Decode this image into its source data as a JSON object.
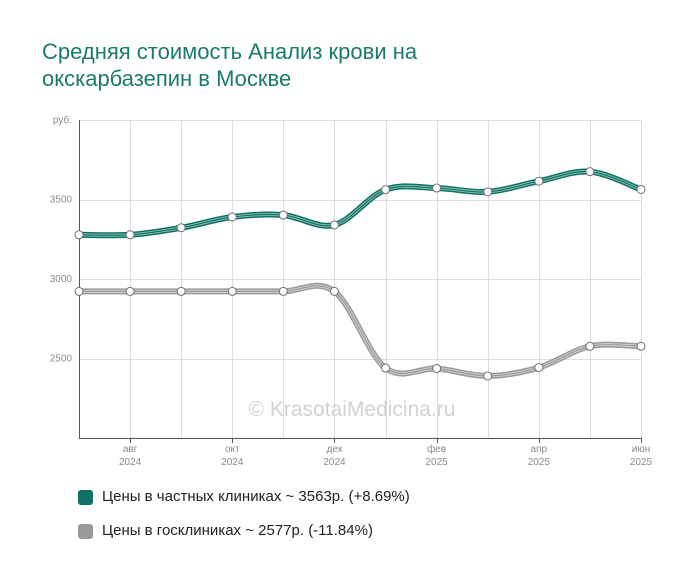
{
  "title_lines": [
    "Средняя стоимость Анализ крови на",
    "окскарбазепин в Москве"
  ],
  "watermark": "© KrasotaiMedicina.ru",
  "colors": {
    "private": "#0d7265",
    "public": "#9a9a9a"
  },
  "legend": [
    {
      "label": "Цены в частных клиниках ~ 3563р. (+8.69%)",
      "color": "#0d7265"
    },
    {
      "label": "Цены в госклиниках ~ 2577р. (-11.84%)",
      "color": "#9a9a9a"
    }
  ],
  "chart_data": {
    "type": "line",
    "y_unit": "руб.",
    "ylim": [
      2000,
      4000
    ],
    "yticks": [
      2500,
      3000,
      3500
    ],
    "x_ticks": [
      {
        "month": "авг",
        "year": "2024"
      },
      {
        "month": "окт",
        "year": "2024"
      },
      {
        "month": "дек",
        "year": "2024"
      },
      {
        "month": "фев",
        "year": "2025"
      },
      {
        "month": "апр",
        "year": "2025"
      },
      {
        "month": "июн",
        "year": "2025"
      }
    ],
    "x": [
      "2024-07",
      "2024-08",
      "2024-09",
      "2024-10",
      "2024-11",
      "2024-12",
      "2025-01",
      "2025-02",
      "2025-03",
      "2025-04",
      "2025-05",
      "2025-06"
    ],
    "series": [
      {
        "name": "Цены в частных клиниках",
        "color": "#0d7265",
        "values": [
          3278,
          3278,
          3322,
          3390,
          3402,
          3340,
          3562,
          3572,
          3548,
          3615,
          3675,
          3563
        ]
      },
      {
        "name": "Цены в госклиниках",
        "color": "#9a9a9a",
        "values": [
          2922,
          2922,
          2922,
          2922,
          2922,
          2922,
          2440,
          2437,
          2390,
          2443,
          2577,
          2577
        ]
      }
    ],
    "grid": true,
    "legend_position": "bottom"
  }
}
